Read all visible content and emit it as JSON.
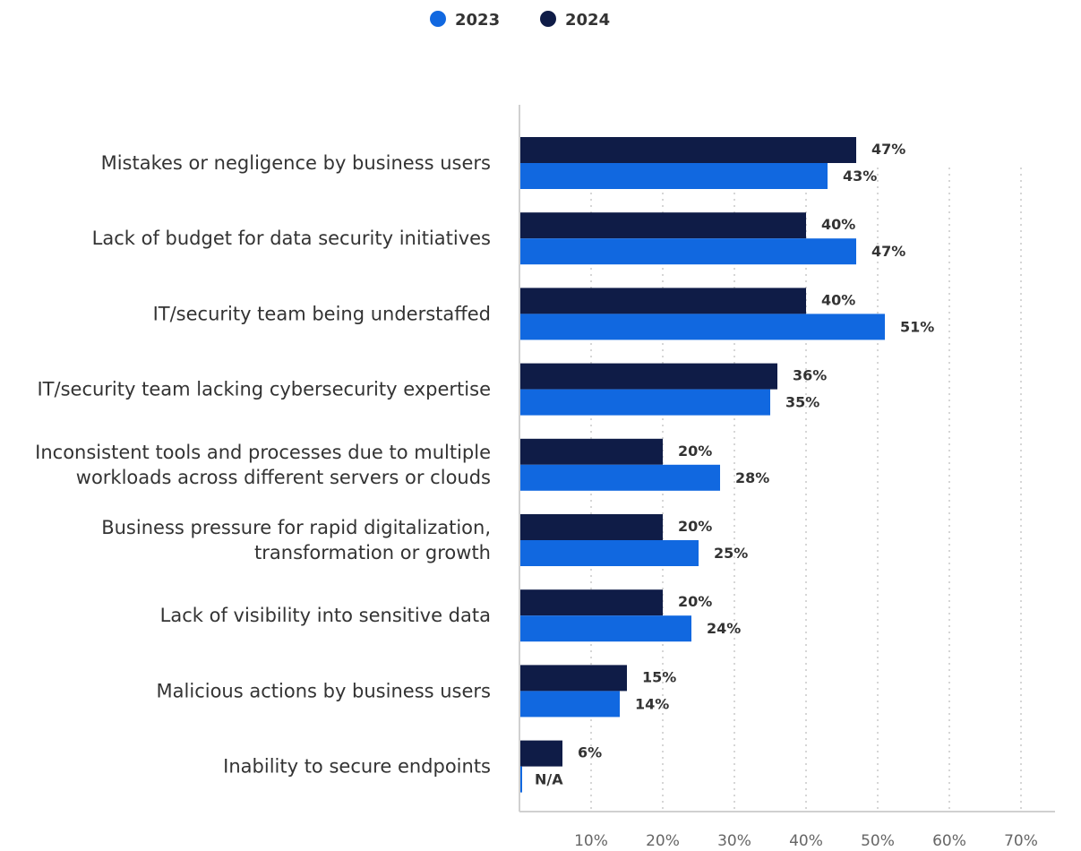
{
  "chart_data": {
    "type": "bar",
    "orientation": "horizontal",
    "categories": [
      [
        "Mistakes or negligence by business users"
      ],
      [
        "Lack of budget for data security initiatives"
      ],
      [
        "IT/security team being understaffed"
      ],
      [
        "IT/security team lacking cybersecurity expertise"
      ],
      [
        "Inconsistent tools and processes due to multiple",
        "workloads across different servers or clouds"
      ],
      [
        "Business pressure for rapid digitalization,",
        "transformation or growth"
      ],
      [
        "Lack of visibility into sensitive data"
      ],
      [
        "Malicious actions by business users"
      ],
      [
        "Inability to secure endpoints"
      ]
    ],
    "series": [
      {
        "name": "2024",
        "color": "#0f1c47",
        "values": [
          47,
          40,
          40,
          36,
          20,
          20,
          20,
          15,
          6
        ],
        "labels": [
          "47%",
          "40%",
          "40%",
          "36%",
          "20%",
          "20%",
          "20%",
          "15%",
          "6%"
        ]
      },
      {
        "name": "2023",
        "color": "#1168e0",
        "values": [
          43,
          47,
          51,
          35,
          28,
          25,
          24,
          14,
          null
        ],
        "labels": [
          "43%",
          "47%",
          "51%",
          "35%",
          "28%",
          "25%",
          "24%",
          "14%",
          "N/A"
        ]
      }
    ],
    "legend": {
      "position": "top-center",
      "entries": [
        {
          "name": "2023",
          "color": "#1168e0"
        },
        {
          "name": "2024",
          "color": "#0f1c47"
        }
      ]
    },
    "x_ticks": [
      10,
      20,
      30,
      40,
      50,
      60,
      70
    ],
    "x_tick_labels": [
      "10%",
      "20%",
      "30%",
      "40%",
      "50%",
      "60%",
      "70%"
    ],
    "xlim": [
      0,
      75
    ],
    "grid": "vertical-dotted",
    "title": "",
    "xlabel": "",
    "ylabel": ""
  }
}
